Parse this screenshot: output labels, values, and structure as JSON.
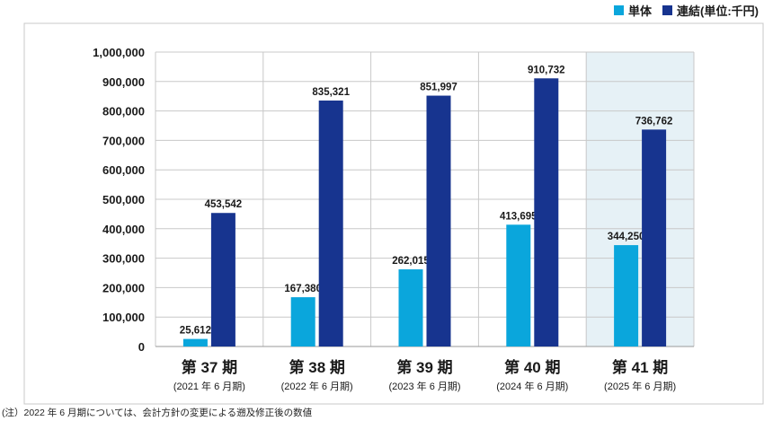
{
  "colors": {
    "single": "#0aa6dc",
    "consolidated": "#17348f",
    "highlight_bg": "#e6f1f6",
    "grid": "#c8c8c8"
  },
  "legend": {
    "single_label": "単体",
    "consolidated_label": "連結(単位:千円)"
  },
  "footnote": "(注）2022 年 6 月期については、会計方針の変更による遡及修正後の数値",
  "chart_data": {
    "type": "bar",
    "categories": [
      "第 37 期",
      "第 38 期",
      "第 39 期",
      "第 40 期",
      "第 41 期"
    ],
    "sublabels": [
      "(2021 年 6 月期)",
      "(2022 年 6 月期)",
      "(2023 年 6 月期)",
      "(2024 年 6 月期)",
      "(2025 年 6 月期)"
    ],
    "series": [
      {
        "name": "単体",
        "values": [
          25612,
          167380,
          262015,
          413695,
          344250
        ],
        "labels": [
          "25,612",
          "167,380",
          "262,015",
          "413,695",
          "344,250"
        ]
      },
      {
        "name": "連結",
        "values": [
          453542,
          835321,
          851997,
          910732,
          736762
        ],
        "labels": [
          "453,542",
          "835,321",
          "851,997",
          "910,732",
          "736,762"
        ]
      }
    ],
    "ylim": [
      0,
      1000000
    ],
    "yticks": [
      "0",
      "100,000",
      "200,000",
      "300,000",
      "400,000",
      "500,000",
      "600,000",
      "700,000",
      "800,000",
      "900,000",
      "1,000,000"
    ],
    "unit": "千円",
    "highlighted_category": "第 41 期",
    "grid": true,
    "legend_position": "top-right"
  }
}
